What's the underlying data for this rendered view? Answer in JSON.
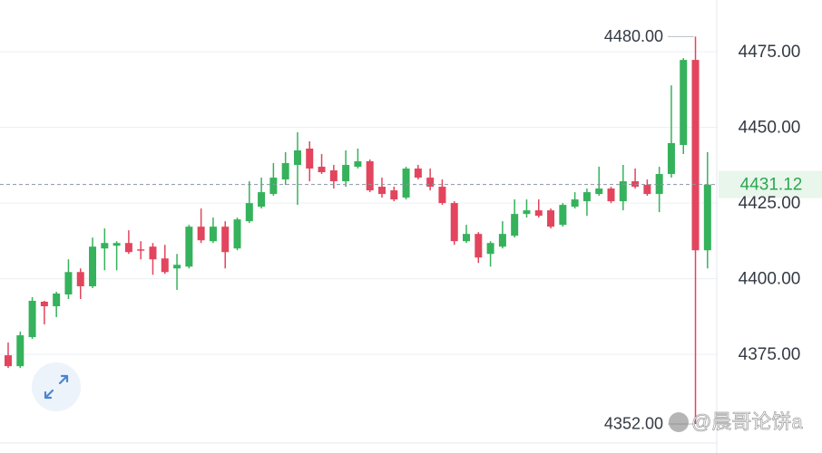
{
  "chart_data": {
    "type": "candlestick",
    "ylim": [
      4345.4,
      4492.1
    ],
    "yticks": [
      {
        "value": 4475,
        "label": "4475.00"
      },
      {
        "value": 4450,
        "label": "4450.00"
      },
      {
        "value": 4425,
        "label": "4425.00"
      },
      {
        "value": 4400,
        "label": "4400.00"
      },
      {
        "value": 4375,
        "label": "4375.00"
      }
    ],
    "grid": true,
    "up_color": "#35b25b",
    "down_color": "#e2455d",
    "series": [
      {
        "open": [
          4374.7,
          4371.1,
          4380.7,
          4392.4,
          4390.9,
          4394.8,
          4402.2,
          4397.5,
          4410.0,
          4410.9,
          4411.8,
          4409.7,
          4410.6,
          4406.7,
          4403.4,
          4404.0,
          4417.2,
          4412.4,
          4417.2,
          4410.0,
          4419.0,
          4423.8,
          4428.0,
          4432.8,
          4437.6,
          4443.0,
          4437.0,
          4435.8,
          4432.2,
          4437.0,
          4438.8,
          4430.4,
          4429.2,
          4426.8,
          4436.4,
          4433.4,
          4430.4,
          4425.0,
          4412.4,
          4414.8,
          4408.2,
          4410.6,
          4414.2,
          4421.4,
          4422.6,
          4422.6,
          4417.8,
          4423.8,
          4425.6,
          4428.0,
          4429.8,
          4425.6,
          4432.2,
          4431.0,
          4428.0,
          4434.6,
          4444.2,
          4472.3,
          4409.4
        ],
        "high": [
          4378.9,
          4382.5,
          4393.9,
          4392.7,
          4395.7,
          4406.4,
          4403.4,
          4413.6,
          4416.6,
          4412.4,
          4416.0,
          4412.4,
          4411.8,
          4411.2,
          4408.2,
          4417.8,
          4423.2,
          4420.2,
          4419.0,
          4420.2,
          4432.2,
          4433.4,
          4438.2,
          4441.8,
          4448.4,
          4445.4,
          4441.2,
          4437.6,
          4442.4,
          4443.0,
          4439.4,
          4433.4,
          4430.4,
          4437.0,
          4437.6,
          4436.4,
          4432.8,
          4425.6,
          4417.8,
          4415.4,
          4412.4,
          4419.0,
          4426.2,
          4426.2,
          4426.2,
          4423.2,
          4425.0,
          4428.6,
          4429.8,
          4437.0,
          4430.4,
          4437.6,
          4436.4,
          4432.8,
          4437.0,
          4463.9,
          4472.9,
          4480,
          4441.8
        ],
        "low": [
          4370.5,
          4370.5,
          4380.1,
          4384.9,
          4387.3,
          4393.3,
          4393.3,
          4396.9,
          4402.8,
          4402.8,
          4408.2,
          4406.4,
          4401.3,
          4401.6,
          4396.3,
          4403.4,
          4411.8,
          4411.8,
          4403.4,
          4409.4,
          4418.4,
          4423.2,
          4427.4,
          4431.0,
          4424.4,
          4432.2,
          4434.6,
          4429.8,
          4430.4,
          4436.4,
          4428.6,
          4426.8,
          4425.6,
          4426.2,
          4432.8,
          4429.2,
          4424.4,
          4411.2,
          4411.8,
          4405.2,
          4404.0,
          4410.0,
          4413.6,
          4420.2,
          4420.2,
          4416.6,
          4417.2,
          4423.2,
          4420.8,
          4427.4,
          4425.0,
          4422.6,
          4429.8,
          4427.4,
          4422.0,
          4433.4,
          4441.2,
          4352,
          4403.4
        ],
        "close": [
          4371.1,
          4381.3,
          4392.7,
          4390.9,
          4395.1,
          4402.2,
          4397.5,
          4410.6,
          4411.8,
          4411.8,
          4408.8,
          4409.4,
          4406.4,
          4402.2,
          4404.6,
          4417.2,
          4412.7,
          4417.2,
          4408.8,
          4419.6,
          4425.0,
          4428.6,
          4433.4,
          4438.2,
          4442.4,
          4436.4,
          4435.2,
          4432.2,
          4437.6,
          4438.8,
          4429.2,
          4428.0,
          4426.2,
          4436.4,
          4433.4,
          4430.4,
          4425.0,
          4412.4,
          4414.8,
          4407.0,
          4411.8,
          4414.8,
          4421.4,
          4422.6,
          4420.8,
          4417.2,
          4424.4,
          4426.2,
          4428.6,
          4429.8,
          4425.6,
          4432.2,
          4430.4,
          4428.0,
          4434.6,
          4444.8,
          4472.3,
          4409.4,
          4431.12
        ]
      }
    ],
    "high_label": {
      "value": 4480,
      "label": "4480.00"
    },
    "low_label": {
      "value": 4352,
      "label": "4352.00"
    },
    "last_price": {
      "value": 4431.12,
      "label": "4431.12"
    },
    "watermark": "@晨哥论饼a"
  }
}
